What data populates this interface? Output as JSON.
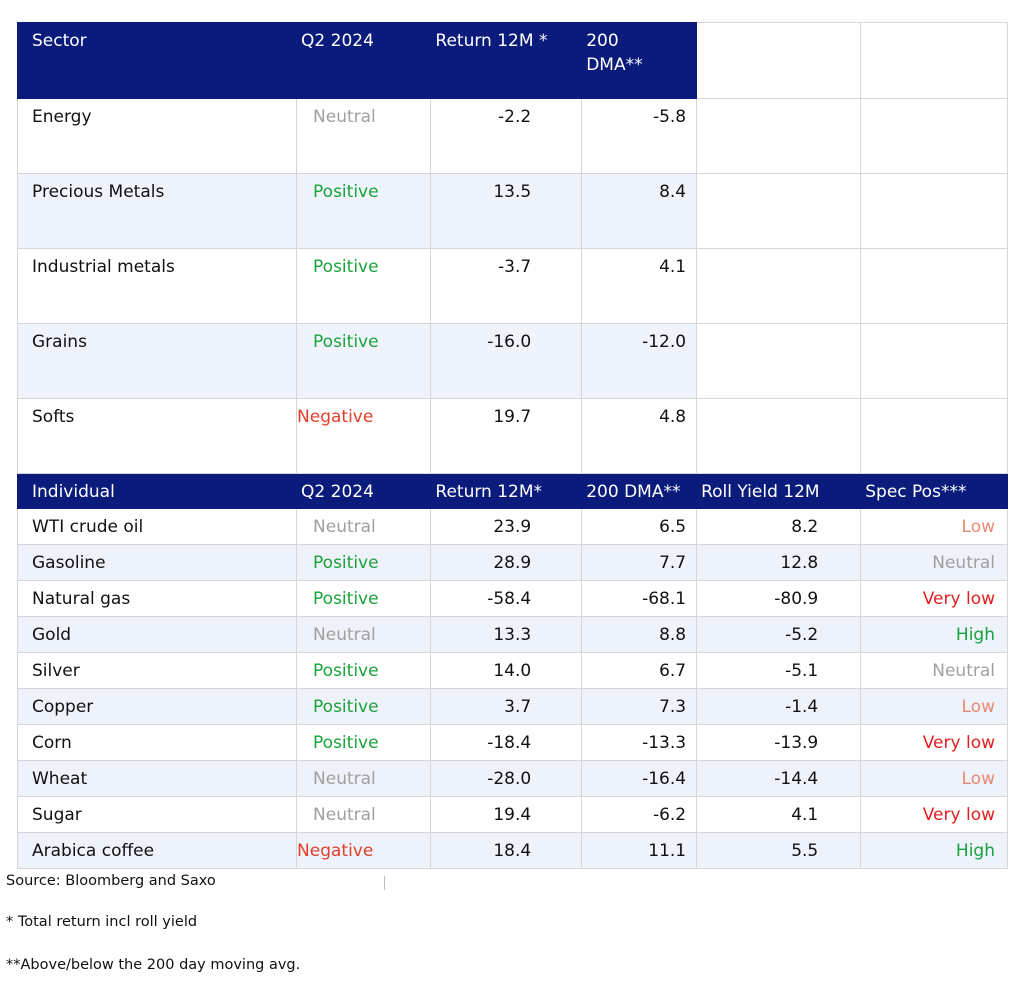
{
  "sector_table": {
    "headers": [
      "Sector",
      "Q2 2024",
      "Return 12M *",
      "200 DMA**"
    ],
    "rows": [
      {
        "sector": "Energy",
        "q2": "Neutral",
        "q2_class": "neu",
        "ret": "-2.2",
        "dma": "-5.8"
      },
      {
        "sector": "Precious Metals",
        "q2": "Positive",
        "q2_class": "pos",
        "ret": "13.5",
        "dma": "8.4"
      },
      {
        "sector": "Industrial metals",
        "q2": "Positive",
        "q2_class": "pos",
        "ret": "-3.7",
        "dma": "4.1"
      },
      {
        "sector": "Grains",
        "q2": "Positive",
        "q2_class": "pos",
        "ret": "-16.0",
        "dma": "-12.0"
      },
      {
        "sector": "Softs",
        "q2": "Negative",
        "q2_class": "negc",
        "ret": "19.7",
        "dma": "4.8"
      }
    ]
  },
  "individual_table": {
    "headers": [
      "Individual",
      "Q2 2024",
      "Return 12M*",
      "200 DMA**",
      "Roll Yield 12M",
      "Spec Pos***"
    ],
    "rows": [
      {
        "name": "WTI crude oil",
        "q2": "Neutral",
        "q2_class": "neu",
        "ret": "23.9",
        "dma": "6.5",
        "roll": "8.2",
        "spec": "Low",
        "spec_class": "low"
      },
      {
        "name": "Gasoline",
        "q2": "Positive",
        "q2_class": "pos",
        "ret": "28.9",
        "dma": "7.7",
        "roll": "12.8",
        "spec": "Neutral",
        "spec_class": "sneu"
      },
      {
        "name": "Natural gas",
        "q2": "Positive",
        "q2_class": "pos",
        "ret": "-58.4",
        "dma": "-68.1",
        "roll": "-80.9",
        "spec": "Very low",
        "spec_class": "vlow"
      },
      {
        "name": "Gold",
        "q2": "Neutral",
        "q2_class": "neu",
        "ret": "13.3",
        "dma": "8.8",
        "roll": "-5.2",
        "spec": "High",
        "spec_class": "high"
      },
      {
        "name": "Silver",
        "q2": "Positive",
        "q2_class": "pos",
        "ret": "14.0",
        "dma": "6.7",
        "roll": "-5.1",
        "spec": "Neutral",
        "spec_class": "sneu"
      },
      {
        "name": "Copper",
        "q2": "Positive",
        "q2_class": "pos",
        "ret": "3.7",
        "dma": "7.3",
        "roll": "-1.4",
        "spec": "Low",
        "spec_class": "low"
      },
      {
        "name": "Corn",
        "q2": "Positive",
        "q2_class": "pos",
        "ret": "-18.4",
        "dma": "-13.3",
        "roll": "-13.9",
        "spec": "Very low",
        "spec_class": "vlow"
      },
      {
        "name": "Wheat",
        "q2": "Neutral",
        "q2_class": "neu",
        "ret": "-28.0",
        "dma": "-16.4",
        "roll": "-14.4",
        "spec": "Low",
        "spec_class": "low"
      },
      {
        "name": "Sugar",
        "q2": "Neutral",
        "q2_class": "neu",
        "ret": "19.4",
        "dma": "-6.2",
        "roll": "4.1",
        "spec": "Very low",
        "spec_class": "vlow"
      },
      {
        "name": "Arabica coffee",
        "q2": "Negative",
        "q2_class": "negc",
        "ret": "18.4",
        "dma": "11.1",
        "roll": "5.5",
        "spec": "High",
        "spec_class": "high"
      }
    ]
  },
  "footnotes": {
    "source": "Source: Bloomberg and Saxo",
    "note1": "* Total return incl roll yield",
    "note2": "**Above/below the 200 day moving avg."
  }
}
